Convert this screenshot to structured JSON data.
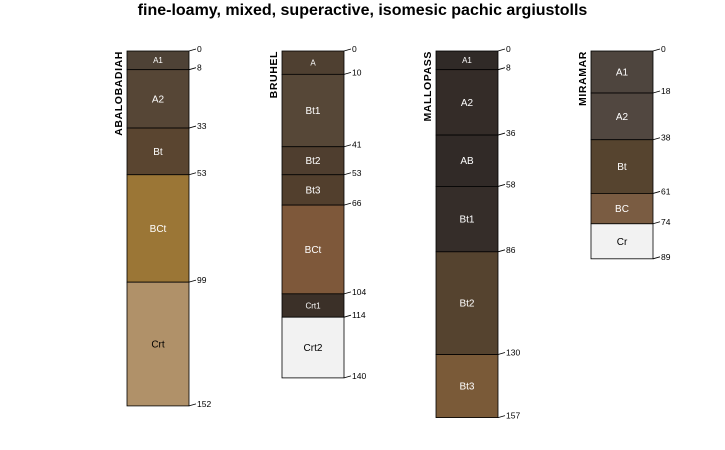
{
  "chart_data": {
    "type": "soil-profile",
    "title": "fine-loamy, mixed, superactive, isomesic pachic argiustolls",
    "depth_units": "cm",
    "profiles": [
      {
        "name": "ABALOBADIAH",
        "horizons": [
          {
            "name": "A1",
            "top": 0,
            "bottom": 8,
            "color": "#4e4236"
          },
          {
            "name": "A2",
            "top": 8,
            "bottom": 33,
            "color": "#564636"
          },
          {
            "name": "Bt",
            "top": 33,
            "bottom": 53,
            "color": "#5a4530"
          },
          {
            "name": "BCt",
            "top": 53,
            "bottom": 99,
            "color": "#9b7636"
          },
          {
            "name": "Crt",
            "top": 99,
            "bottom": 152,
            "color": "#b09169"
          }
        ]
      },
      {
        "name": "BRUHEL",
        "horizons": [
          {
            "name": "A",
            "top": 0,
            "bottom": 10,
            "color": "#4f4031"
          },
          {
            "name": "Bt1",
            "top": 10,
            "bottom": 41,
            "color": "#564737"
          },
          {
            "name": "Bt2",
            "top": 41,
            "bottom": 53,
            "color": "#4f3e2f"
          },
          {
            "name": "Bt3",
            "top": 53,
            "bottom": 66,
            "color": "#523f2d"
          },
          {
            "name": "BCt",
            "top": 66,
            "bottom": 104,
            "color": "#7e583a"
          },
          {
            "name": "Crt1",
            "top": 104,
            "bottom": 114,
            "color": "#3b3028"
          },
          {
            "name": "Crt2",
            "top": 114,
            "bottom": 140,
            "color": "#f2f2f2"
          }
        ]
      },
      {
        "name": "MALLOPASS",
        "horizons": [
          {
            "name": "A1",
            "top": 0,
            "bottom": 8,
            "color": "#302a27"
          },
          {
            "name": "A2",
            "top": 8,
            "bottom": 36,
            "color": "#342c28"
          },
          {
            "name": "AB",
            "top": 36,
            "bottom": 58,
            "color": "#312a27"
          },
          {
            "name": "Bt1",
            "top": 58,
            "bottom": 86,
            "color": "#352d29"
          },
          {
            "name": "Bt2",
            "top": 86,
            "bottom": 130,
            "color": "#55432f"
          },
          {
            "name": "Bt3",
            "top": 130,
            "bottom": 157,
            "color": "#7a5a38"
          }
        ]
      },
      {
        "name": "MIRAMAR",
        "horizons": [
          {
            "name": "A1",
            "top": 0,
            "bottom": 18,
            "color": "#4e453e"
          },
          {
            "name": "A2",
            "top": 18,
            "bottom": 38,
            "color": "#514740"
          },
          {
            "name": "Bt",
            "top": 38,
            "bottom": 61,
            "color": "#56442f"
          },
          {
            "name": "BC",
            "top": 61,
            "bottom": 74,
            "color": "#7a5c42"
          },
          {
            "name": "Cr",
            "top": 74,
            "bottom": 89,
            "color": "#f2f2f2"
          }
        ]
      }
    ]
  }
}
